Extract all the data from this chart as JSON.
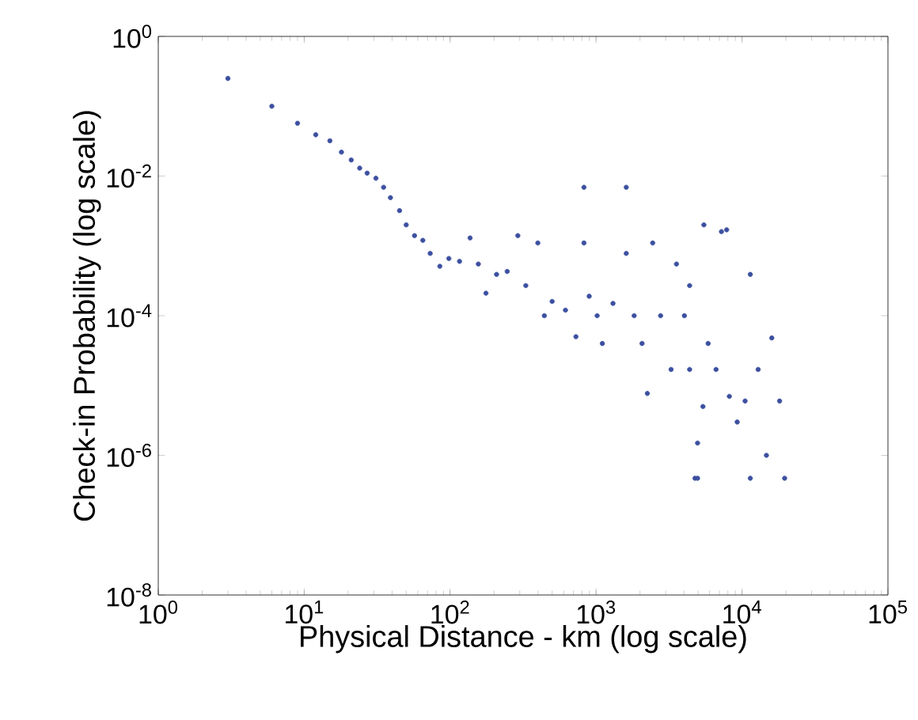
{
  "chart_data": {
    "type": "scatter",
    "xlabel": "Physical Distance - km (log scale)",
    "ylabel": "Check-in Probability (log scale)",
    "log": "xy",
    "grid": false,
    "xlim": [
      1,
      100000
    ],
    "ylim": [
      1e-08,
      1
    ],
    "xticks": [
      {
        "value": 1,
        "label": "10$^{0}$"
      },
      {
        "value": 10,
        "label": "10$^{1}$"
      },
      {
        "value": 100,
        "label": "10$^{2}$"
      },
      {
        "value": 1000,
        "label": "10$^{3}$"
      },
      {
        "value": 10000,
        "label": "10$^{4}$"
      },
      {
        "value": 100000,
        "label": "10$^{5}$"
      }
    ],
    "yticks": [
      {
        "value": 1e-08,
        "label": "10$^{-8}$"
      },
      {
        "value": 1e-06,
        "label": "10$^{-6}$"
      },
      {
        "value": 0.0001,
        "label": "10$^{-4}$"
      },
      {
        "value": 0.01,
        "label": "10$^{-2}$"
      },
      {
        "value": 1,
        "label": "10$^{0}$"
      }
    ],
    "series": [
      {
        "color": "#3c50a0",
        "x": [
          3.0,
          6.0,
          9.0,
          12,
          15,
          18,
          21,
          24,
          27,
          31,
          35,
          39,
          45,
          50,
          57,
          65,
          73,
          85,
          98,
          116,
          137,
          156,
          176,
          208,
          246,
          291,
          330,
          399,
          442,
          500,
          617,
          728,
          826,
          826,
          897,
          1017,
          1104,
          1306,
          1610,
          1610,
          1824,
          2066,
          2246,
          2443,
          2768,
          3266,
          3556,
          4028,
          4376,
          4376,
          4760,
          4960,
          4960,
          5400,
          5480,
          5860,
          6640,
          7230,
          7850,
          8190,
          9270,
          10500,
          11400,
          11400,
          12900,
          14700,
          16000,
          18100,
          19600
        ],
        "values": [
          0.25,
          0.1,
          0.057,
          0.039,
          0.032,
          0.022,
          0.017,
          0.013,
          0.011,
          0.0093,
          0.0069,
          0.0049,
          0.0032,
          0.002,
          0.0014,
          0.0012,
          0.00078,
          0.00051,
          0.00066,
          0.0006,
          0.0013,
          0.00055,
          0.00021,
          0.00039,
          0.00043,
          0.0014,
          0.00027,
          0.0011,
          0.0001,
          0.00016,
          0.00012,
          5e-05,
          0.0069,
          0.0011,
          0.00019,
          0.0001,
          4e-05,
          0.00015,
          0.0069,
          0.00078,
          0.0001,
          4e-05,
          7.7e-06,
          0.0011,
          0.0001,
          1.7e-05,
          0.00055,
          0.0001,
          1.7e-05,
          0.00027,
          4.7e-07,
          1.5e-06,
          4.7e-07,
          5e-06,
          0.002,
          4e-05,
          1.7e-05,
          0.0016,
          0.0017,
          7e-06,
          3e-06,
          6e-06,
          0.00039,
          4.7e-07,
          1.7e-05,
          1e-06,
          4.8e-05,
          6e-06,
          4.7e-07
        ]
      }
    ]
  }
}
